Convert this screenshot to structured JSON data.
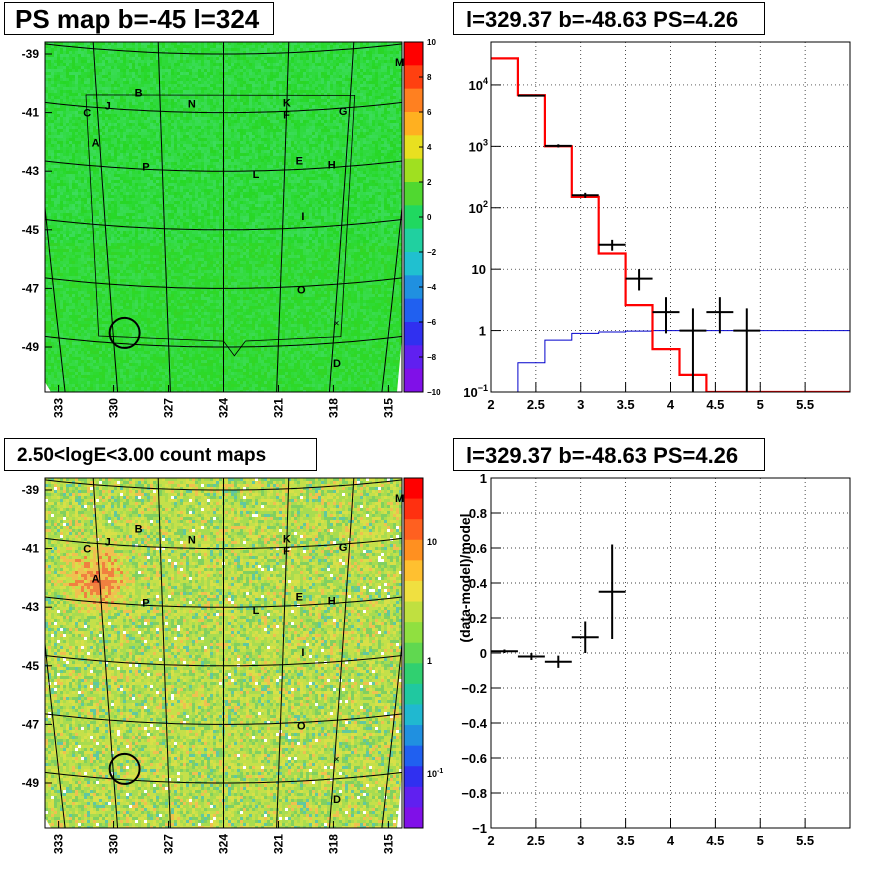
{
  "titles": {
    "ps_map": "PS map b=-45 l=324",
    "spectrum": "l=329.37 b=-48.63 PS=4.26",
    "count_map": "2.50<logE<3.00 count maps",
    "residual": "l=329.37 b=-48.63 PS=4.26"
  },
  "colors": {
    "data": "#000000",
    "model": "#ff0000",
    "background_model": "#0000cc",
    "ps_map_base": "#33dd44",
    "count_map_base": "#c8e040"
  },
  "chart_data": [
    {
      "type": "heatmap",
      "title": "PS map b=-45 l=324",
      "xlabel": "",
      "ylabel": "",
      "x_ticks": [
        "333",
        "330",
        "327",
        "324",
        "321",
        "318",
        "315"
      ],
      "y_ticks": [
        "-39",
        "-41",
        "-43",
        "-45",
        "-47",
        "-49"
      ],
      "colorbar_ticks": [
        "10",
        "8",
        "6",
        "4",
        "2",
        "0",
        "−2",
        "−4",
        "−6",
        "−8",
        "−10"
      ],
      "colorbar_range": [
        -10,
        10
      ],
      "typical_value": 1,
      "source_labels": [
        {
          "name": "B",
          "l": 328.0,
          "b": -40.4
        },
        {
          "name": "N",
          "l": 325.5,
          "b": -40.7
        },
        {
          "name": "K",
          "l": 321.0,
          "b": -40.7
        },
        {
          "name": "M",
          "l": 315.8,
          "b": -39.6
        },
        {
          "name": "C",
          "l": 330.5,
          "b": -41.2
        },
        {
          "name": "J",
          "l": 329.5,
          "b": -40.9
        },
        {
          "name": "F",
          "l": 321.0,
          "b": -41.1
        },
        {
          "name": "G",
          "l": 318.3,
          "b": -41.1
        },
        {
          "name": "A",
          "l": 330.2,
          "b": -42.2
        },
        {
          "name": "P",
          "l": 327.8,
          "b": -42.9
        },
        {
          "name": "E",
          "l": 320.3,
          "b": -42.7
        },
        {
          "name": "H",
          "l": 318.7,
          "b": -42.9
        },
        {
          "name": "L",
          "l": 322.4,
          "b": -43.1
        },
        {
          "name": "I",
          "l": 320.0,
          "b": -44.6
        },
        {
          "name": "O",
          "l": 319.9,
          "b": -47.1
        },
        {
          "name": "D",
          "l": 317.7,
          "b": -49.7
        }
      ],
      "circle": {
        "l": 329.37,
        "b": -48.63
      }
    },
    {
      "type": "line",
      "title": "l=329.37 b=-48.63 PS=4.26",
      "xlabel": "",
      "ylabel": "",
      "xlim": [
        2,
        6
      ],
      "ylim": [
        0.1,
        50000
      ],
      "log_y": true,
      "x_ticks": [
        "2",
        "2.5",
        "3",
        "3.5",
        "4",
        "4.5",
        "5",
        "5.5"
      ],
      "y_ticks": [
        "10^-1",
        "1",
        "10",
        "10^2",
        "10^3",
        "10^4"
      ],
      "grid": true,
      "series": [
        {
          "edges": [
            2,
            2.3,
            2.6,
            2.9,
            3.2,
            3.5,
            3.8,
            4.1,
            4.4,
            4.7,
            5.0,
            6.0
          ],
          "values": [
            27000,
            6800,
            1000,
            150,
            18,
            2.6,
            0.5,
            0.19,
            0.1,
            0.1,
            0.1
          ]
        },
        {
          "edges": [
            2,
            2.3,
            2.6,
            2.9,
            3.2,
            3.5,
            3.8,
            4.1,
            4.4,
            4.7,
            5.0,
            6.0
          ],
          "values": [
            0,
            0.3,
            0.7,
            0.9,
            0.95,
            0.98,
            1.0,
            1.0,
            1.0,
            1.0,
            1.0
          ]
        },
        {
          "points": [
            {
              "x": 2.45,
              "y": 6700,
              "xerr": 0.15,
              "ylo": 6500,
              "yhi": 6900
            },
            {
              "x": 2.75,
              "y": 1020,
              "xerr": 0.15,
              "ylo": 960,
              "yhi": 1080
            },
            {
              "x": 3.05,
              "y": 160,
              "xerr": 0.15,
              "ylo": 145,
              "yhi": 175
            },
            {
              "x": 3.35,
              "y": 25,
              "xerr": 0.15,
              "ylo": 20,
              "yhi": 30
            },
            {
              "x": 3.65,
              "y": 7,
              "xerr": 0.15,
              "ylo": 4.5,
              "yhi": 10
            },
            {
              "x": 3.95,
              "y": 2,
              "xerr": 0.15,
              "ylo": 0.9,
              "yhi": 3.5
            },
            {
              "x": 4.25,
              "y": 1,
              "xerr": 0.15,
              "ylo": 0.1,
              "yhi": 2.3
            },
            {
              "x": 4.55,
              "y": 2,
              "xerr": 0.15,
              "ylo": 0.9,
              "yhi": 3.5
            },
            {
              "x": 4.85,
              "y": 1,
              "xerr": 0.15,
              "ylo": 0.1,
              "yhi": 2.3
            }
          ]
        }
      ]
    },
    {
      "type": "heatmap",
      "title": "2.50<logE<3.00 count maps",
      "xlabel": "",
      "ylabel": "",
      "x_ticks": [
        "333",
        "330",
        "327",
        "324",
        "321",
        "318",
        "315"
      ],
      "y_ticks": [
        "-39",
        "-41",
        "-43",
        "-45",
        "-47",
        "-49"
      ],
      "colorbar_ticks": [
        "10",
        "1",
        "10^-1"
      ],
      "colorbar_log": true,
      "hotspot": {
        "l": 330.2,
        "b": -42.2
      },
      "circle": {
        "l": 329.37,
        "b": -48.63
      }
    },
    {
      "type": "scatter",
      "title": "l=329.37 b=-48.63 PS=4.26",
      "xlabel": "",
      "ylabel": "(data-model)/model",
      "xlim": [
        2,
        6
      ],
      "ylim": [
        -1,
        1
      ],
      "x_ticks": [
        "2",
        "2.5",
        "3",
        "3.5",
        "4",
        "4.5",
        "5",
        "5.5"
      ],
      "y_ticks": [
        "−1",
        "−0.8",
        "−0.6",
        "−0.4",
        "−0.2",
        "0",
        "0.2",
        "0.4",
        "0.6",
        "0.8",
        "1"
      ],
      "grid": true,
      "points": [
        {
          "x": 2.15,
          "y": 0.01,
          "xerr": 0.15,
          "yerr": 0.01
        },
        {
          "x": 2.45,
          "y": -0.02,
          "xerr": 0.15,
          "yerr": 0.02
        },
        {
          "x": 2.75,
          "y": -0.05,
          "xerr": 0.15,
          "yerr": 0.035
        },
        {
          "x": 3.05,
          "y": 0.09,
          "xerr": 0.15,
          "yerr": 0.09
        },
        {
          "x": 3.35,
          "y": 0.35,
          "xerr": 0.15,
          "ylo": 0.08,
          "yhi": 0.62
        }
      ]
    }
  ]
}
